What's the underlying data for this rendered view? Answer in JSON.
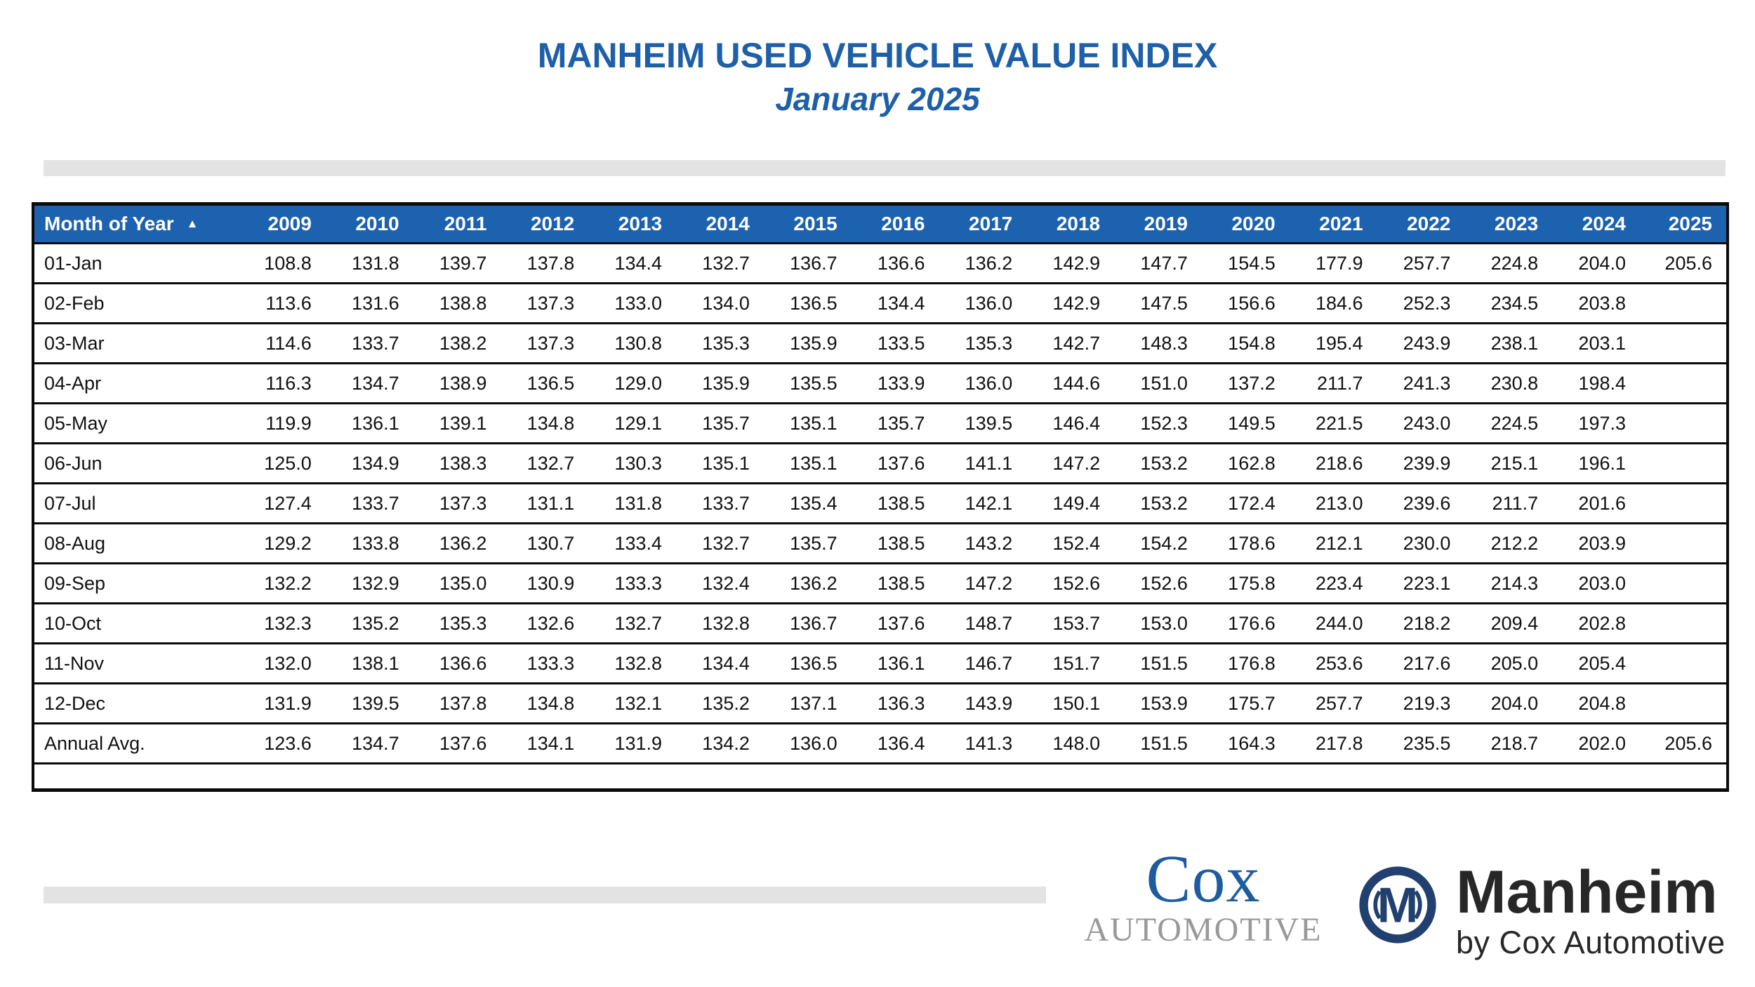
{
  "title": "MANHEIM USED VEHICLE VALUE INDEX",
  "subtitle": "January 2025",
  "table": {
    "month_header": "Month of Year",
    "sort_icon": "▲",
    "years": [
      "2009",
      "2010",
      "2011",
      "2012",
      "2013",
      "2014",
      "2015",
      "2016",
      "2017",
      "2018",
      "2019",
      "2020",
      "2021",
      "2022",
      "2023",
      "2024",
      "2025"
    ],
    "rows": [
      {
        "label": "01-Jan",
        "values": [
          "108.8",
          "131.8",
          "139.7",
          "137.8",
          "134.4",
          "132.7",
          "136.7",
          "136.6",
          "136.2",
          "142.9",
          "147.7",
          "154.5",
          "177.9",
          "257.7",
          "224.8",
          "204.0",
          "205.6"
        ]
      },
      {
        "label": "02-Feb",
        "values": [
          "113.6",
          "131.6",
          "138.8",
          "137.3",
          "133.0",
          "134.0",
          "136.5",
          "134.4",
          "136.0",
          "142.9",
          "147.5",
          "156.6",
          "184.6",
          "252.3",
          "234.5",
          "203.8",
          ""
        ]
      },
      {
        "label": "03-Mar",
        "values": [
          "114.6",
          "133.7",
          "138.2",
          "137.3",
          "130.8",
          "135.3",
          "135.9",
          "133.5",
          "135.3",
          "142.7",
          "148.3",
          "154.8",
          "195.4",
          "243.9",
          "238.1",
          "203.1",
          ""
        ]
      },
      {
        "label": "04-Apr",
        "values": [
          "116.3",
          "134.7",
          "138.9",
          "136.5",
          "129.0",
          "135.9",
          "135.5",
          "133.9",
          "136.0",
          "144.6",
          "151.0",
          "137.2",
          "211.7",
          "241.3",
          "230.8",
          "198.4",
          ""
        ]
      },
      {
        "label": "05-May",
        "values": [
          "119.9",
          "136.1",
          "139.1",
          "134.8",
          "129.1",
          "135.7",
          "135.1",
          "135.7",
          "139.5",
          "146.4",
          "152.3",
          "149.5",
          "221.5",
          "243.0",
          "224.5",
          "197.3",
          ""
        ]
      },
      {
        "label": "06-Jun",
        "values": [
          "125.0",
          "134.9",
          "138.3",
          "132.7",
          "130.3",
          "135.1",
          "135.1",
          "137.6",
          "141.1",
          "147.2",
          "153.2",
          "162.8",
          "218.6",
          "239.9",
          "215.1",
          "196.1",
          ""
        ]
      },
      {
        "label": "07-Jul",
        "values": [
          "127.4",
          "133.7",
          "137.3",
          "131.1",
          "131.8",
          "133.7",
          "135.4",
          "138.5",
          "142.1",
          "149.4",
          "153.2",
          "172.4",
          "213.0",
          "239.6",
          "211.7",
          "201.6",
          ""
        ]
      },
      {
        "label": "08-Aug",
        "values": [
          "129.2",
          "133.8",
          "136.2",
          "130.7",
          "133.4",
          "132.7",
          "135.7",
          "138.5",
          "143.2",
          "152.4",
          "154.2",
          "178.6",
          "212.1",
          "230.0",
          "212.2",
          "203.9",
          ""
        ]
      },
      {
        "label": "09-Sep",
        "values": [
          "132.2",
          "132.9",
          "135.0",
          "130.9",
          "133.3",
          "132.4",
          "136.2",
          "138.5",
          "147.2",
          "152.6",
          "152.6",
          "175.8",
          "223.4",
          "223.1",
          "214.3",
          "203.0",
          ""
        ]
      },
      {
        "label": "10-Oct",
        "values": [
          "132.3",
          "135.2",
          "135.3",
          "132.6",
          "132.7",
          "132.8",
          "136.7",
          "137.6",
          "148.7",
          "153.7",
          "153.0",
          "176.6",
          "244.0",
          "218.2",
          "209.4",
          "202.8",
          ""
        ]
      },
      {
        "label": "11-Nov",
        "values": [
          "132.0",
          "138.1",
          "136.6",
          "133.3",
          "132.8",
          "134.4",
          "136.5",
          "136.1",
          "146.7",
          "151.7",
          "151.5",
          "176.8",
          "253.6",
          "217.6",
          "205.0",
          "205.4",
          ""
        ]
      },
      {
        "label": "12-Dec",
        "values": [
          "131.9",
          "139.5",
          "137.8",
          "134.8",
          "132.1",
          "135.2",
          "137.1",
          "136.3",
          "143.9",
          "150.1",
          "153.9",
          "175.7",
          "257.7",
          "219.3",
          "204.0",
          "204.8",
          ""
        ]
      },
      {
        "label": "Annual Avg.",
        "values": [
          "123.6",
          "134.7",
          "137.6",
          "134.1",
          "131.9",
          "134.2",
          "136.0",
          "136.4",
          "141.3",
          "148.0",
          "151.5",
          "164.3",
          "217.8",
          "235.5",
          "218.7",
          "202.0",
          "205.6"
        ]
      }
    ]
  },
  "footer": {
    "cox_logo": {
      "line1": "Cox",
      "line2": "AUTOMOTIVE"
    },
    "manheim_logo": {
      "monogram": "M",
      "name": "Manheim",
      "tagline": "by Cox Automotive"
    }
  },
  "colors": {
    "title_blue": "#1E5FA9",
    "header_blue": "#1D62AE",
    "bar_gray": "#E3E3E3",
    "cox_blue": "#1D5C9E",
    "cox_gray": "#97999B",
    "manheim_navy": "#21406F"
  }
}
